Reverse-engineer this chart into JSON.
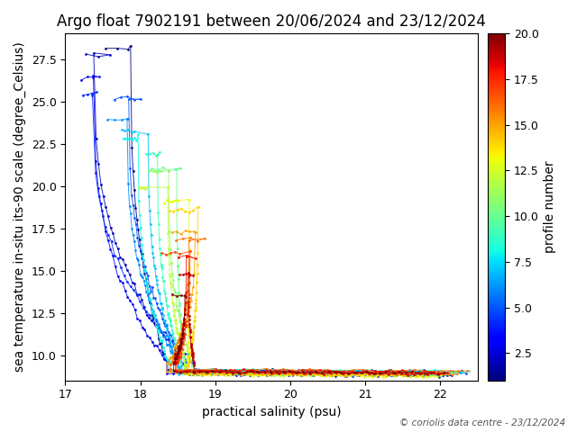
{
  "title": "Argo float 7902191 between 20/06/2024 and 23/12/2024",
  "xlabel": "practical salinity (psu)",
  "ylabel": "sea temperature in-situ its-90 scale (degree_Celsius)",
  "colorbar_label": "profile number",
  "xlim": [
    17,
    22.5
  ],
  "ylim": [
    8.5,
    29.0
  ],
  "xticks": [
    17,
    18,
    19,
    20,
    21,
    22
  ],
  "yticks": [
    10.0,
    12.5,
    15.0,
    17.5,
    20.0,
    22.5,
    25.0,
    27.5
  ],
  "colorbar_ticks": [
    2.5,
    5.0,
    7.5,
    10.0,
    12.5,
    15.0,
    17.5,
    20.0
  ],
  "cmap": "jet",
  "n_profiles": 20,
  "copyright_text": "© coriolis data centre - 23/12/2024",
  "background_color": "white",
  "title_fontsize": 12,
  "label_fontsize": 10,
  "figsize": [
    6.4,
    4.8
  ],
  "dpi": 100
}
